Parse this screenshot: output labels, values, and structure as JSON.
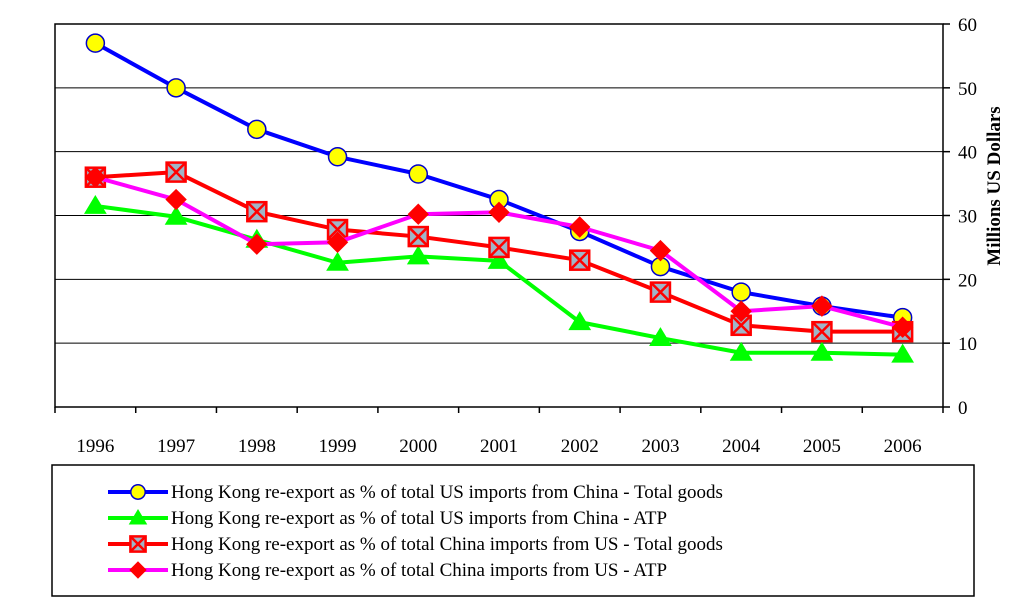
{
  "chart_data": {
    "type": "line",
    "title": "",
    "xlabel": "",
    "ylabel": "Millions US Dollars",
    "ylim": [
      0,
      60
    ],
    "y_ticks": [
      0,
      10,
      20,
      30,
      40,
      50,
      60
    ],
    "y_axis_side": "right",
    "grid": "horizontal",
    "legend_position": "bottom",
    "categories": [
      "1996",
      "1997",
      "1998",
      "1999",
      "2000",
      "2001",
      "2002",
      "2003",
      "2004",
      "2005",
      "2006"
    ],
    "series": [
      {
        "name": "Hong Kong re-export as % of total US imports from China - Total goods",
        "color": "#0000ff",
        "marker": "circle",
        "marker_fill": "#ffff00",
        "values": [
          57,
          50,
          43.5,
          39.2,
          36.5,
          32.5,
          27.5,
          22,
          18,
          15.8,
          14
        ]
      },
      {
        "name": "Hong Kong re-export as % of total US imports from China - ATP",
        "color": "#00ff00",
        "marker": "triangle",
        "marker_fill": "#00ff00",
        "values": [
          31.5,
          29.8,
          26.2,
          22.6,
          23.6,
          22.9,
          13.3,
          10.8,
          8.5,
          8.5,
          8.2
        ]
      },
      {
        "name": "Hong Kong re-export as % of total China imports from US - Total goods",
        "color": "#ff0000",
        "marker": "x-square",
        "marker_fill": "#ff0000",
        "values": [
          36,
          36.8,
          30.6,
          27.8,
          26.7,
          25,
          23,
          18,
          12.8,
          11.8,
          11.8
        ]
      },
      {
        "name": "Hong Kong re-export as % of total China imports from US - ATP",
        "color": "#ff00ff",
        "marker": "diamond",
        "marker_fill": "#ff0000",
        "values": [
          36,
          32.5,
          25.5,
          25.8,
          30.2,
          30.5,
          28.2,
          24.5,
          15,
          15.8,
          12.5
        ]
      }
    ]
  }
}
